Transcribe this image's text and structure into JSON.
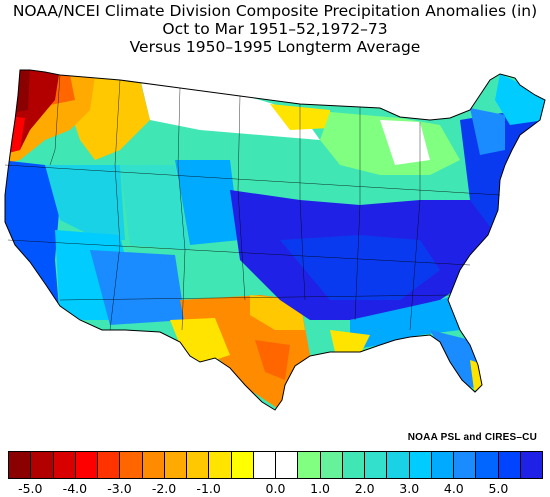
{
  "title_line1": "NOAA/NCEI Climate Division Composite Precipitation Anomalies (in)",
  "title_line2": "Oct to Mar  1951–52,1972–73",
  "title_line3": "Versus 1950–1995 Longterm Average",
  "credit": "NOAA PSL and CIRES–CU",
  "colorbar": {
    "colors": [
      "#8b0000",
      "#b20000",
      "#d80000",
      "#ff0000",
      "#ff3300",
      "#ff6600",
      "#ff8c00",
      "#ffaa00",
      "#ffc800",
      "#ffe400",
      "#ffff00",
      "#ffffff",
      "#ffffff",
      "#80ff80",
      "#66f29a",
      "#40e6b3",
      "#33e0cc",
      "#1ad2e6",
      "#00ccff",
      "#00aaff",
      "#1a8cff",
      "#0066ff",
      "#0044ff",
      "#1f22e6"
    ],
    "tick_labels": [
      "-5.0",
      "-4.0",
      "-3.0",
      "-2.0",
      "-1.0",
      "0.0",
      "1.0",
      "2.0",
      "3.0",
      "4.0",
      "5.0"
    ]
  },
  "regions": [
    {
      "name": "Pacific Northwest coast",
      "anomaly": -5.0,
      "color": "#b20000"
    },
    {
      "name": "Washington interior",
      "anomaly": -2.0,
      "color": "#ff8c00"
    },
    {
      "name": "Oregon / Idaho",
      "anomaly": -1.0,
      "color": "#ffc800"
    },
    {
      "name": "Montana / Northern Plains",
      "anomaly": 0.0,
      "color": "#ffffff"
    },
    {
      "name": "California / Nevada",
      "anomaly": 4.0,
      "color": "#0055ff"
    },
    {
      "name": "Great Basin / Rockies",
      "anomaly": 2.5,
      "color": "#1ad2e6"
    },
    {
      "name": "Arizona / New Mexico",
      "anomaly": 3.5,
      "color": "#1a8cff"
    },
    {
      "name": "Central Plains",
      "anomaly": 1.5,
      "color": "#40e6b3"
    },
    {
      "name": "Texas",
      "anomaly": -2.0,
      "color": "#ff8c00"
    },
    {
      "name": "Mississippi / Ohio Valleys",
      "anomaly": 4.5,
      "color": "#1f22e6"
    },
    {
      "name": "Southeast / Florida",
      "anomaly": 3.0,
      "color": "#00aaff"
    },
    {
      "name": "Great Lakes",
      "anomaly": 1.0,
      "color": "#80ff80"
    },
    {
      "name": "Northeast / Mid-Atlantic",
      "anomaly": 4.5,
      "color": "#0a3af0"
    }
  ]
}
